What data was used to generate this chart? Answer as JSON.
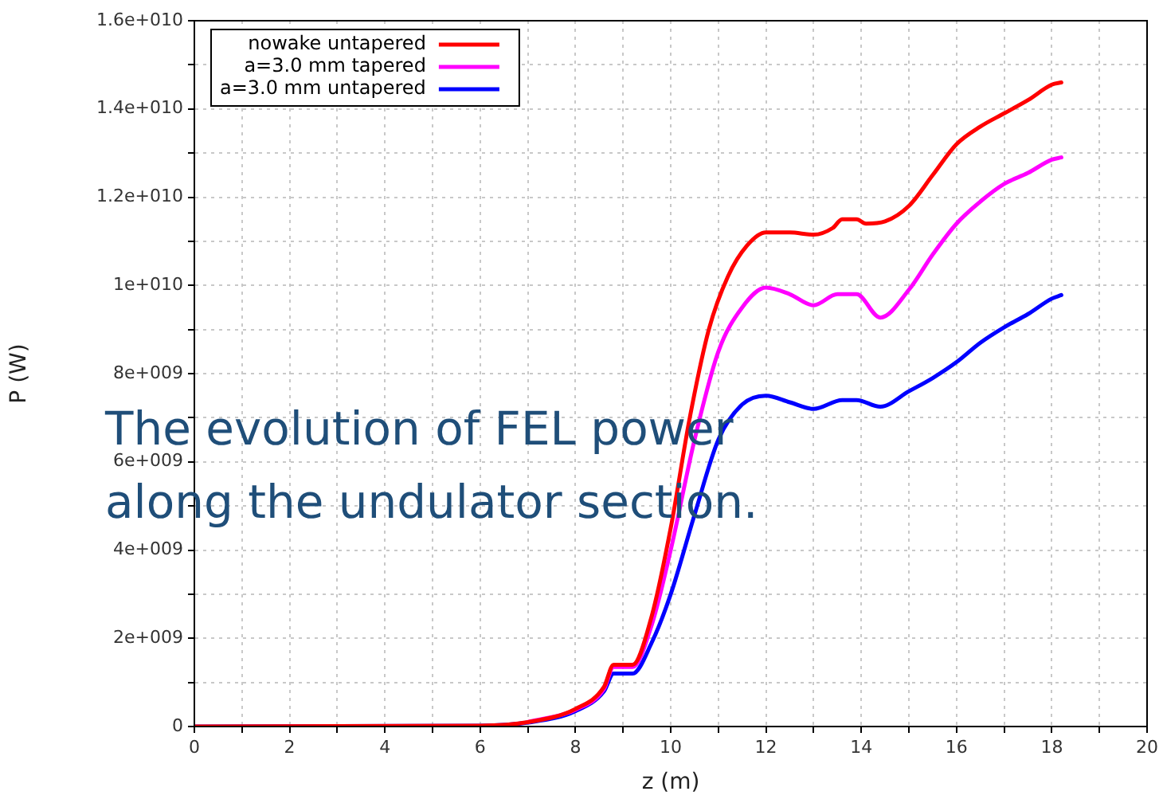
{
  "chart_data": {
    "type": "line",
    "xlabel": "z (m)",
    "ylabel": "P (W)",
    "annotations": [
      "The evolution of FEL power along the undulator section."
    ],
    "xlim": [
      0,
      20
    ],
    "xticks": [
      0,
      {
        "value": 1,
        "label": null
      },
      2,
      {
        "value": 3,
        "label": null
      },
      4,
      {
        "value": 5,
        "label": null
      },
      6,
      {
        "value": 7,
        "label": null
      },
      8,
      {
        "value": 9,
        "label": null
      },
      10,
      {
        "value": 11,
        "label": null
      },
      12,
      {
        "value": 13,
        "label": null
      },
      14,
      {
        "value": 15,
        "label": null
      },
      16,
      {
        "value": 17,
        "label": null
      },
      18,
      {
        "value": 19,
        "label": null
      },
      20
    ],
    "ylim": [
      0,
      16000000000
    ],
    "yticks": [
      0,
      {
        "value": 1000000000,
        "label": null
      },
      {
        "value": 2000000000,
        "label": "2e+009"
      },
      {
        "value": 3000000000,
        "label": null
      },
      {
        "value": 4000000000,
        "label": "4e+009"
      },
      {
        "value": 5000000000,
        "label": null
      },
      {
        "value": 6000000000,
        "label": "6e+009"
      },
      {
        "value": 7000000000,
        "label": null
      },
      {
        "value": 8000000000,
        "label": "8e+009"
      },
      {
        "value": 9000000000,
        "label": null
      },
      {
        "value": 10000000000,
        "label": "1e+010"
      },
      {
        "value": 11000000000,
        "label": null
      },
      {
        "value": 12000000000,
        "label": "1.2e+010"
      },
      {
        "value": 13000000000,
        "label": null
      },
      {
        "value": 14000000000,
        "label": "1.4e+010"
      },
      {
        "value": 15000000000,
        "label": null
      },
      {
        "value": 16000000000,
        "label": "1.6e+010"
      }
    ],
    "grid": true,
    "legend": "top left",
    "marker": "none",
    "line_style": "solid",
    "series": [
      {
        "name": "nowake untapered",
        "color": "#ff0000",
        "x": [
          0,
          6,
          7,
          8,
          8.6,
          8.8,
          9.2,
          9.6,
          10,
          10.4,
          10.8,
          11.2,
          11.6,
          12,
          12.5,
          13,
          13.4,
          13.6,
          13.9,
          14.1,
          14.5,
          15,
          15.5,
          16,
          16.5,
          17,
          17.5,
          18,
          18.2
        ],
        "values": [
          0,
          20000000,
          100000000,
          400000000,
          900000000,
          1400000000,
          1400000000,
          2500000000,
          4500000000,
          7000000000,
          9000000000,
          10200000000,
          10900000000,
          11200000000,
          11200000000,
          11150000000,
          11300000000,
          11500000000,
          11500000000,
          11400000000,
          11450000000,
          11800000000,
          12500000000,
          13200000000,
          13600000000,
          13900000000,
          14200000000,
          14550000000,
          14600000000
        ]
      },
      {
        "name": "a=3.0 mm tapered",
        "color": "#ff00ff",
        "x": [
          7,
          8,
          8.6,
          8.8,
          9.2,
          9.6,
          10,
          10.5,
          11,
          11.5,
          12,
          12.5,
          13,
          13.5,
          13.9,
          14.4,
          15,
          15.5,
          16,
          16.5,
          17,
          17.5,
          18,
          18.2
        ],
        "values": [
          100000000,
          380000000,
          850000000,
          1350000000,
          1350000000,
          2300000000,
          4000000000,
          6500000000,
          8500000000,
          9500000000,
          9950000000,
          9800000000,
          9550000000,
          9800000000,
          9800000000,
          9270000000,
          9900000000,
          10700000000,
          11400000000,
          11900000000,
          12300000000,
          12550000000,
          12850000000,
          12900000000
        ]
      },
      {
        "name": "a=3.0 mm untapered",
        "color": "#0000ff",
        "x": [
          0,
          6,
          7,
          8,
          8.6,
          8.8,
          9.2,
          9.6,
          10,
          10.5,
          11,
          11.5,
          12,
          12.5,
          13,
          13.6,
          13.9,
          14.4,
          15,
          15.5,
          16,
          16.5,
          17,
          17.5,
          18,
          18.2
        ],
        "values": [
          0,
          20000000,
          90000000,
          350000000,
          800000000,
          1200000000,
          1200000000,
          1900000000,
          3000000000,
          4800000000,
          6500000000,
          7300000000,
          7500000000,
          7350000000,
          7200000000,
          7400000000,
          7400000000,
          7250000000,
          7600000000,
          7900000000,
          8260000000,
          8700000000,
          9050000000,
          9350000000,
          9700000000,
          9780000000
        ]
      }
    ]
  }
}
